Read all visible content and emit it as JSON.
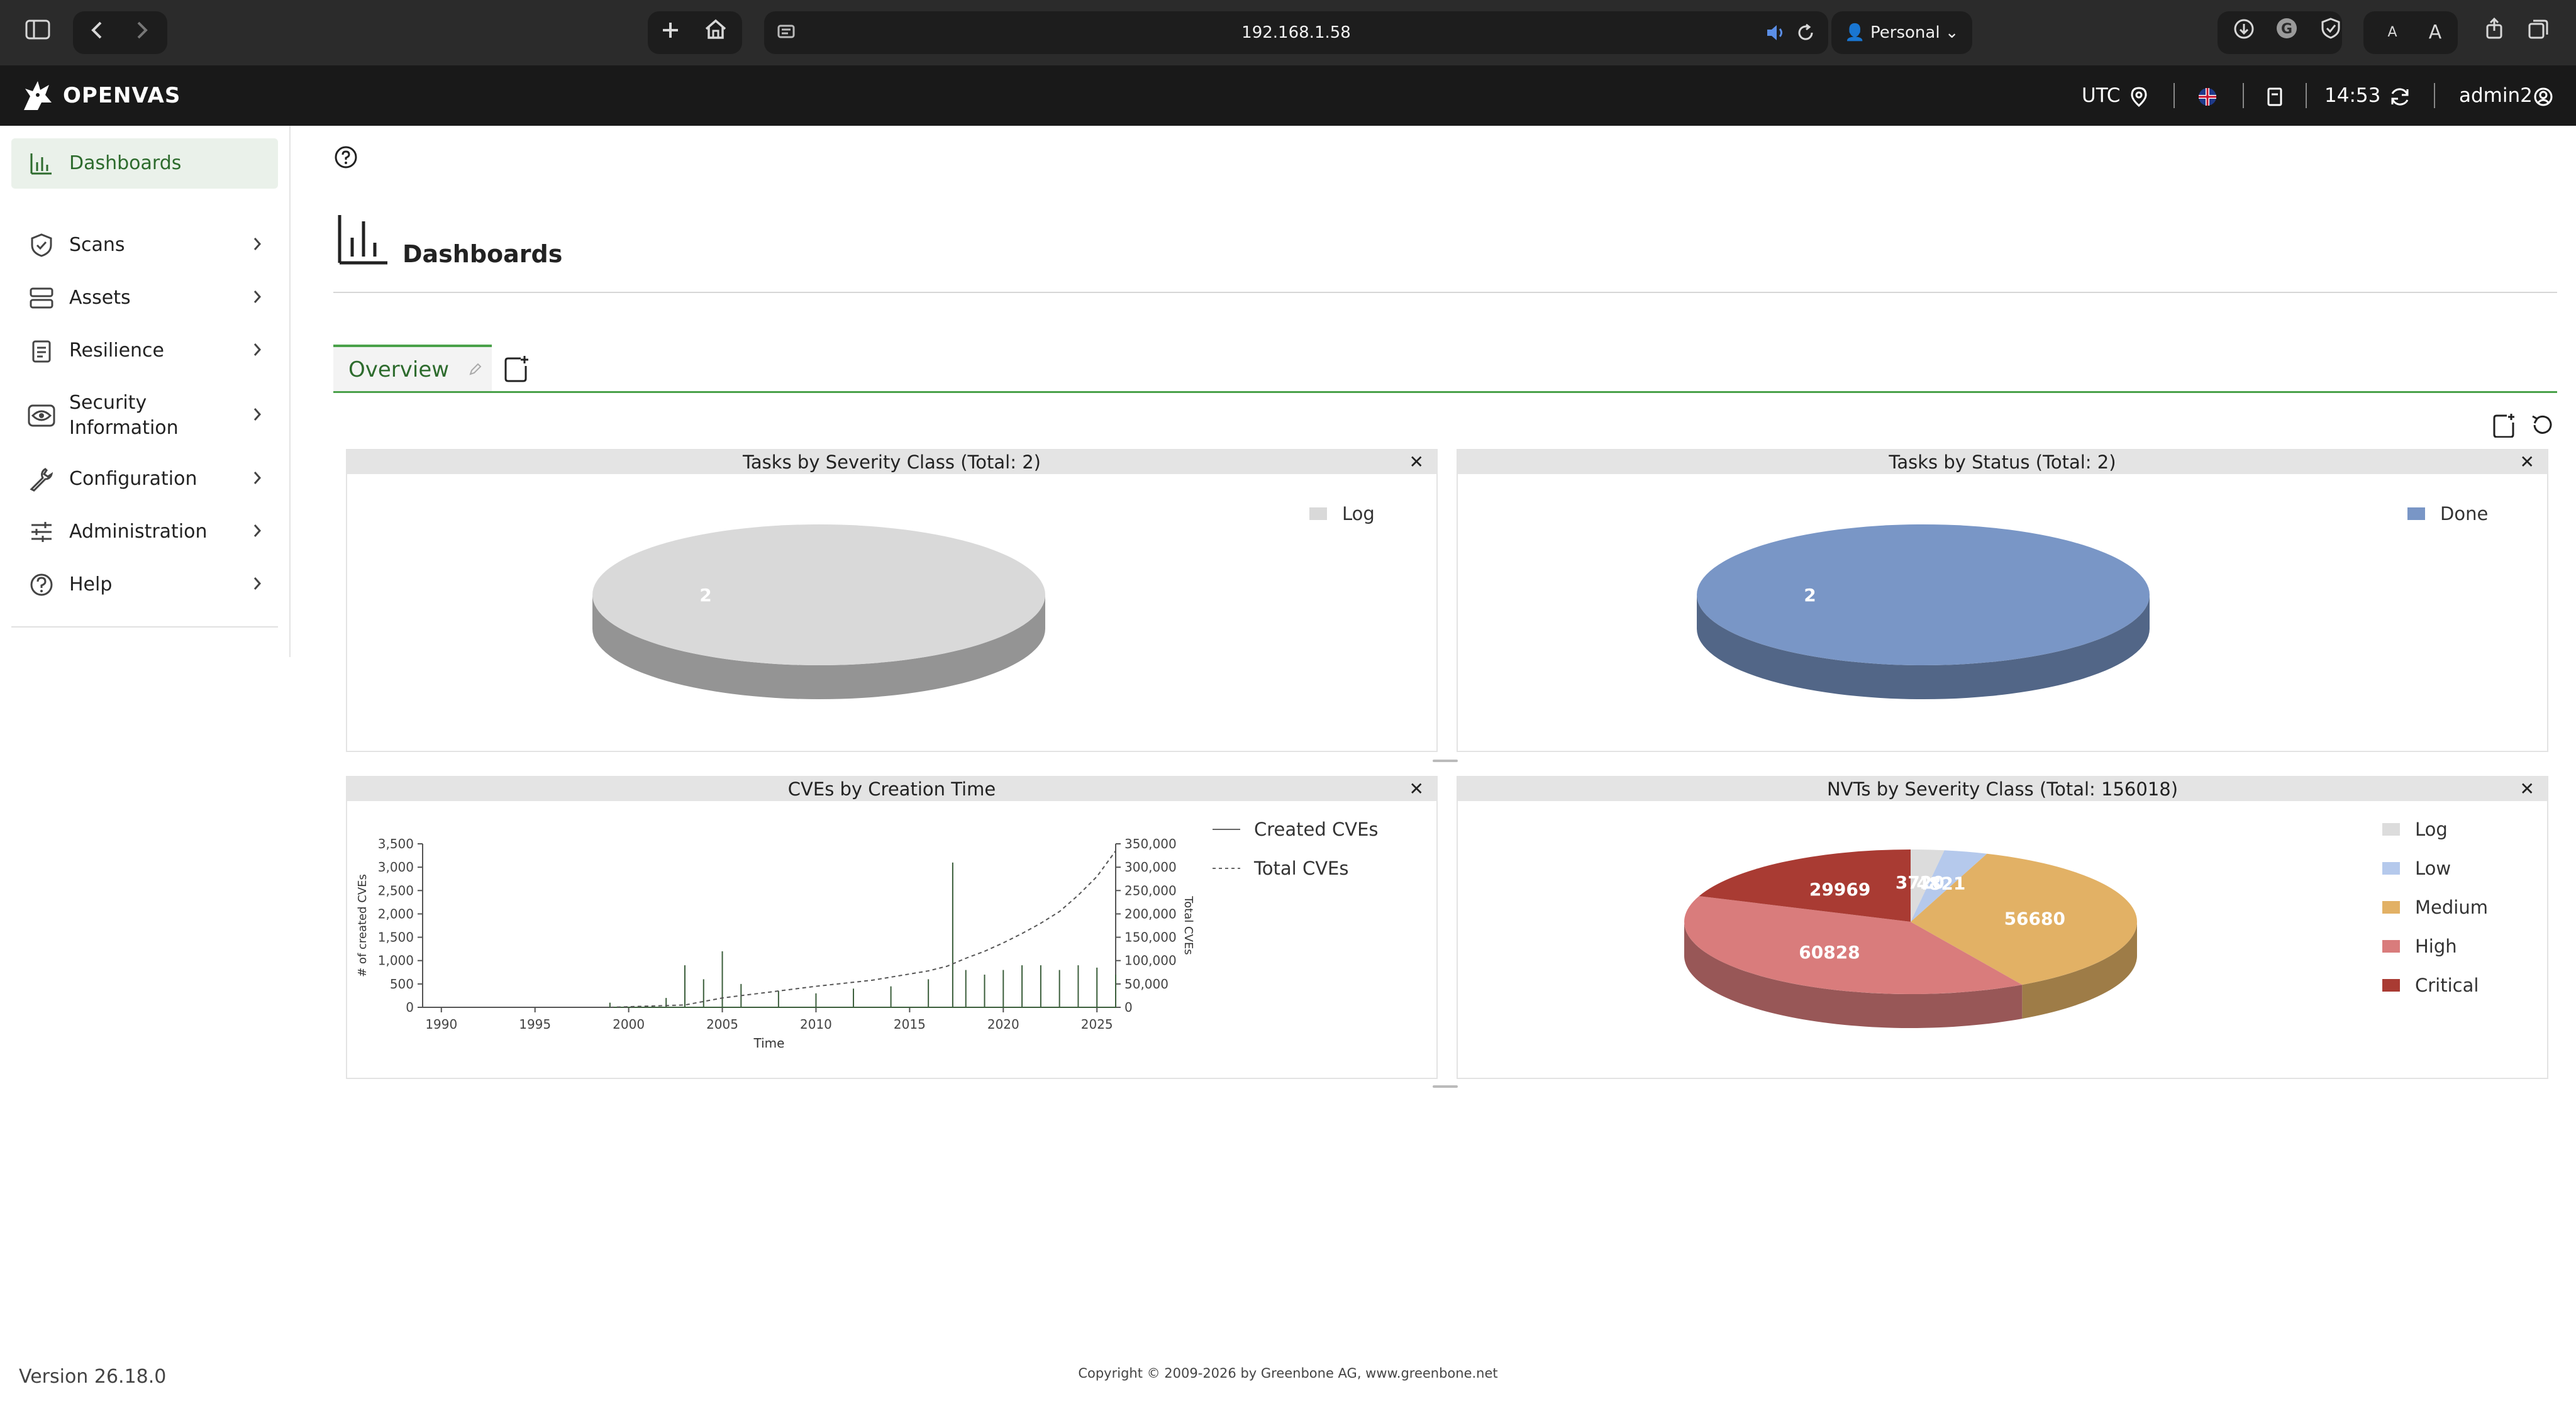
{
  "browser": {
    "url": "192.168.1.58",
    "profile": "Personal"
  },
  "app": {
    "brand": "OPENVAS",
    "header": {
      "timezone": "UTC",
      "time": "14:53",
      "user": "admin2"
    }
  },
  "sidebar": {
    "items": [
      {
        "label": "Dashboards",
        "icon": "bar-chart-icon"
      },
      {
        "label": "Scans",
        "icon": "shield-icon"
      },
      {
        "label": "Assets",
        "icon": "server-icon"
      },
      {
        "label": "Resilience",
        "icon": "clipboard-icon"
      },
      {
        "label": "Security Information",
        "icon": "eye-icon"
      },
      {
        "label": "Configuration",
        "icon": "wrench-icon"
      },
      {
        "label": "Administration",
        "icon": "sliders-icon"
      },
      {
        "label": "Help",
        "icon": "help-circle-icon"
      }
    ]
  },
  "page": {
    "title": "Dashboards",
    "tab": "Overview"
  },
  "panels": {
    "tasks_severity": {
      "title": "Tasks by Severity Class (Total: 2)"
    },
    "tasks_status": {
      "title": "Tasks by Status (Total: 2)"
    },
    "cves_time": {
      "title": "CVEs by Creation Time"
    },
    "nvts_severity": {
      "title": "NVTs by Severity Class (Total: 156018)"
    }
  },
  "chart_data": [
    {
      "type": "pie",
      "title": "Tasks by Severity Class (Total: 2)",
      "slices": [
        {
          "label": "Log",
          "value": 2,
          "color": "#d9d9d9"
        }
      ],
      "legend": "top-right"
    },
    {
      "type": "pie",
      "title": "Tasks by Status (Total: 2)",
      "slices": [
        {
          "label": "Done",
          "value": 2,
          "color": "#7996c6"
        }
      ],
      "legend": "top-right"
    },
    {
      "type": "line",
      "title": "CVEs by Creation Time",
      "xlabel": "Time",
      "ylabel": "# of created CVEs",
      "y2label": "Total CVEs",
      "xticks": [
        "1990",
        "1995",
        "2000",
        "2005",
        "2010",
        "2015",
        "2020",
        "2025"
      ],
      "yticks": [
        "0",
        "500",
        "1,000",
        "1,500",
        "2,000",
        "2,500",
        "3,000",
        "3,500"
      ],
      "y2ticks": [
        "0",
        "50,000",
        "100,000",
        "150,000",
        "200,000",
        "250,000",
        "300,000",
        "350,000"
      ],
      "xlim": [
        1989,
        2026
      ],
      "ylim": [
        0,
        3500
      ],
      "y2lim": [
        0,
        350000
      ],
      "series": [
        {
          "name": "Created CVEs",
          "style": "solid",
          "x": [
            1999,
            2002,
            2003,
            2004,
            2005,
            2006,
            2008,
            2010,
            2012,
            2014,
            2016,
            2017.3,
            2018,
            2019,
            2020,
            2021,
            2022,
            2023,
            2024,
            2025,
            2026
          ],
          "y": [
            100,
            200,
            900,
            600,
            1200,
            500,
            350,
            300,
            400,
            450,
            600,
            3100,
            800,
            700,
            800,
            900,
            900,
            800,
            900,
            850,
            700
          ]
        },
        {
          "name": "Total CVEs",
          "style": "dashed",
          "x": [
            1999,
            2003,
            2005,
            2008,
            2010,
            2013,
            2016,
            2017,
            2018,
            2019,
            2020,
            2021,
            2022,
            2023,
            2024,
            2025,
            2026
          ],
          "y": [
            0,
            5000,
            20000,
            35000,
            45000,
            58000,
            78000,
            88000,
            105000,
            120000,
            138000,
            158000,
            180000,
            205000,
            240000,
            280000,
            335000
          ]
        }
      ],
      "legend": "top-right"
    },
    {
      "type": "pie",
      "title": "NVTs by Severity Class (Total: 156018)",
      "slices": [
        {
          "label": "Log",
          "value": 3720,
          "color": "#dcdcdc"
        },
        {
          "label": "Low",
          "value": 4821,
          "color": "#b5c9ec"
        },
        {
          "label": "Medium",
          "value": 56680,
          "color": "#e2b165"
        },
        {
          "label": "High",
          "value": 60828,
          "color": "#d97c7c"
        },
        {
          "label": "Critical",
          "value": 29969,
          "color": "#a93b33"
        }
      ],
      "legend": "top-right"
    }
  ],
  "footer": {
    "version": "Version 26.18.0",
    "copyright": "Copyright © 2009-2026 by Greenbone AG, www.greenbone.net"
  }
}
